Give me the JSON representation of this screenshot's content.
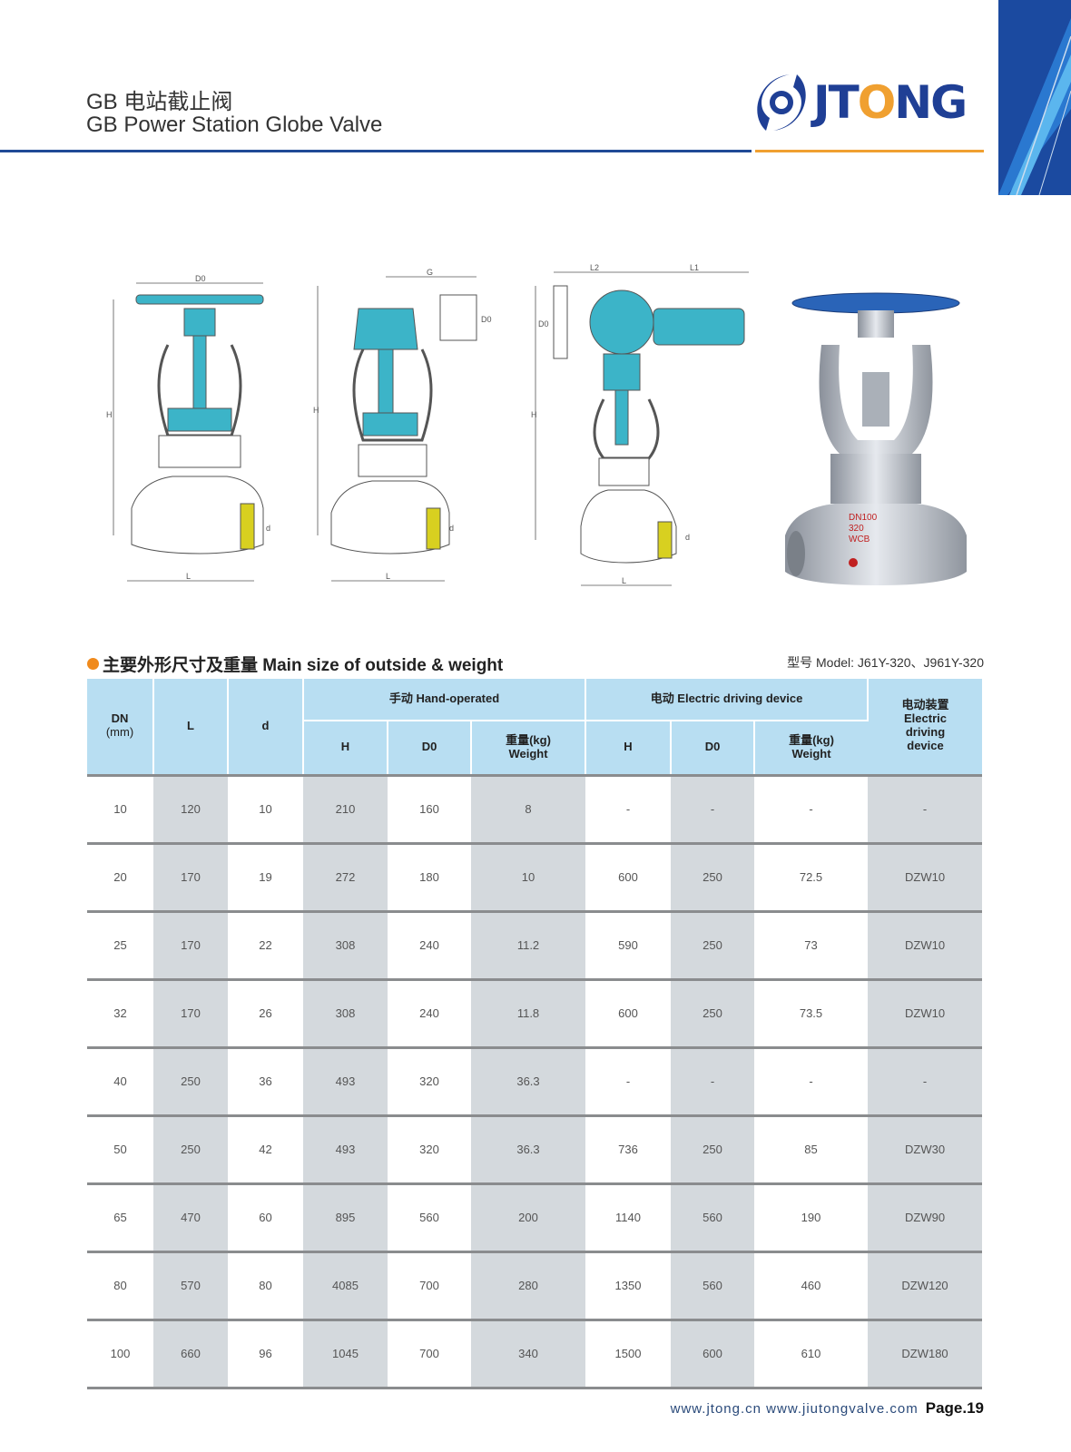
{
  "header": {
    "title_cn": "GB 电站截止阀",
    "title_en": "GB Power Station Globe Valve",
    "logo_text": "JTONG",
    "colors": {
      "brand_blue": "#1f3f95",
      "brand_orange": "#f0a030",
      "header_cell": "#b8def2",
      "shaded_cell": "#d4d9dd"
    }
  },
  "figures": {
    "dims": {
      "d0": "D0",
      "g": "G",
      "l1": "L1",
      "l2": "L2",
      "h": "H",
      "l": "L",
      "d": "d"
    },
    "photo_marking": [
      "DN100",
      "320",
      "WCB"
    ]
  },
  "section": {
    "title": "主要外形尺寸及重量 Main size of outside & weight",
    "model": "型号 Model: J61Y-320、J961Y-320"
  },
  "table": {
    "headers": {
      "dn": "DN",
      "dn_unit": "(mm)",
      "l": "L",
      "d": "d",
      "hand": "手动 Hand-operated",
      "electric": "电动 Electric driving device",
      "device_cn": "电动装置",
      "device_en": "Electric driving device",
      "h": "H",
      "d0": "D0",
      "weight_cn": "重量(kg)",
      "weight_en": "Weight"
    },
    "rows": [
      [
        "10",
        "120",
        "10",
        "210",
        "160",
        "8",
        "-",
        "-",
        "-",
        "-"
      ],
      [
        "20",
        "170",
        "19",
        "272",
        "180",
        "10",
        "600",
        "250",
        "72.5",
        "DZW10"
      ],
      [
        "25",
        "170",
        "22",
        "308",
        "240",
        "11.2",
        "590",
        "250",
        "73",
        "DZW10"
      ],
      [
        "32",
        "170",
        "26",
        "308",
        "240",
        "11.8",
        "600",
        "250",
        "73.5",
        "DZW10"
      ],
      [
        "40",
        "250",
        "36",
        "493",
        "320",
        "36.3",
        "-",
        "-",
        "-",
        "-"
      ],
      [
        "50",
        "250",
        "42",
        "493",
        "320",
        "36.3",
        "736",
        "250",
        "85",
        "DZW30"
      ],
      [
        "65",
        "470",
        "60",
        "895",
        "560",
        "200",
        "1140",
        "560",
        "190",
        "DZW90"
      ],
      [
        "80",
        "570",
        "80",
        "4085",
        "700",
        "280",
        "1350",
        "560",
        "460",
        "DZW120"
      ],
      [
        "100",
        "660",
        "96",
        "1045",
        "700",
        "340",
        "1500",
        "600",
        "610",
        "DZW180"
      ]
    ]
  },
  "footer": {
    "websites": "www.jtong.cn  www.jiutongvalve.com",
    "page": "Page.19"
  }
}
